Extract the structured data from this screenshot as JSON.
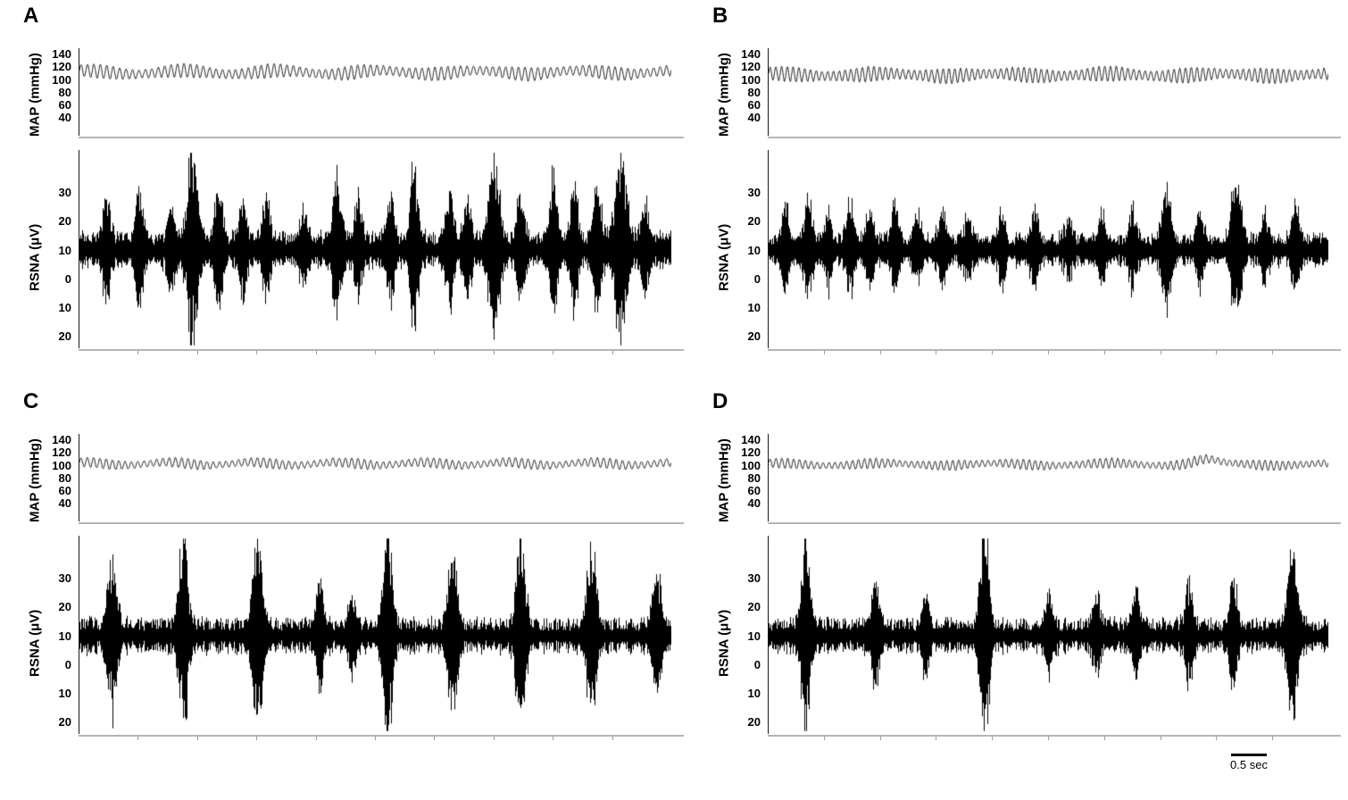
{
  "chart_data": {
    "type": "line",
    "title": "",
    "description": "Four-panel figure (A-D); each panel shows a raw mean arterial pressure (MAP, mmHg) trace above a raw renal sympathetic nerve activity (RSNA, microvolts) trace versus time.",
    "time_scale": {
      "label": "0.5 sec",
      "seconds": 0.5
    },
    "colors": {
      "rsna_trace": "#000000",
      "map_trace": "#222222",
      "axis_line": "#1a1a1a",
      "baseline_gray": "#b5b5b5"
    },
    "panels": [
      {
        "label": "A",
        "map": {
          "kind": "map",
          "ylabel": "MAP (mmHg)",
          "unit": "mmHg",
          "ticks": [
            140,
            120,
            100,
            80,
            60,
            40
          ],
          "tick_labels": [
            "140",
            "120",
            "100",
            "80",
            "60",
            "40"
          ],
          "ylim": [
            12,
            150
          ],
          "mean": 112,
          "pulse_amp": 11,
          "slow_amp": 3,
          "slow_cycles": 6,
          "beats": 92,
          "seed": 101
        },
        "rsna": {
          "kind": "rsna",
          "ylabel": "RSNA (μV)",
          "unit": "μV",
          "ticks": [
            30,
            20,
            10,
            0,
            -10,
            -20
          ],
          "tick_labels": [
            "30",
            "20",
            "10",
            "0",
            "10",
            "20"
          ],
          "ylim": [
            -24,
            45
          ],
          "baseline": 10,
          "noise_amp": 4.5,
          "seed": 201,
          "bursts": [
            [
              0.045,
              12
            ],
            [
              0.1,
              16
            ],
            [
              0.155,
              10
            ],
            [
              0.19,
              27,
              0.008
            ],
            [
              0.235,
              18
            ],
            [
              0.275,
              12
            ],
            [
              0.315,
              14
            ],
            [
              0.38,
              10
            ],
            [
              0.435,
              20
            ],
            [
              0.47,
              12
            ],
            [
              0.525,
              14
            ],
            [
              0.565,
              22
            ],
            [
              0.625,
              16
            ],
            [
              0.655,
              12
            ],
            [
              0.7,
              26,
              0.008
            ],
            [
              0.745,
              14
            ],
            [
              0.8,
              20
            ],
            [
              0.835,
              16
            ],
            [
              0.875,
              18
            ],
            [
              0.915,
              26,
              0.009
            ],
            [
              0.955,
              12
            ]
          ]
        }
      },
      {
        "label": "B",
        "map": {
          "kind": "map",
          "ylabel": "MAP (mmHg)",
          "unit": "mmHg",
          "ticks": [
            140,
            120,
            100,
            80,
            60,
            40
          ],
          "tick_labels": [
            "140",
            "120",
            "100",
            "80",
            "60",
            "40"
          ],
          "ylim": [
            12,
            150
          ],
          "mean": 108,
          "pulse_amp": 12,
          "slow_amp": 2,
          "slow_cycles": 5,
          "beats": 97,
          "seed": 102
        },
        "rsna": {
          "kind": "rsna",
          "ylabel": "RSNA (μV)",
          "unit": "μV",
          "ticks": [
            30,
            20,
            10,
            0,
            -10,
            -20
          ],
          "tick_labels": [
            "30",
            "20",
            "10",
            "0",
            "10",
            "20"
          ],
          "ylim": [
            -24,
            45
          ],
          "baseline": 10,
          "noise_amp": 4,
          "seed": 202,
          "bursts": [
            [
              0.03,
              10
            ],
            [
              0.07,
              13
            ],
            [
              0.105,
              9
            ],
            [
              0.145,
              12
            ],
            [
              0.18,
              10
            ],
            [
              0.225,
              13
            ],
            [
              0.265,
              9
            ],
            [
              0.31,
              11
            ],
            [
              0.355,
              8
            ],
            [
              0.415,
              9
            ],
            [
              0.475,
              10
            ],
            [
              0.535,
              8
            ],
            [
              0.595,
              9
            ],
            [
              0.65,
              10
            ],
            [
              0.71,
              17,
              0.008
            ],
            [
              0.77,
              10
            ],
            [
              0.835,
              22,
              0.008
            ],
            [
              0.885,
              9
            ],
            [
              0.94,
              11
            ]
          ]
        }
      },
      {
        "label": "C",
        "map": {
          "kind": "map",
          "ylabel": "MAP (mmHg)",
          "unit": "mmHg",
          "ticks": [
            140,
            120,
            100,
            80,
            60,
            40
          ],
          "tick_labels": [
            "140",
            "120",
            "100",
            "80",
            "60",
            "40"
          ],
          "ylim": [
            12,
            150
          ],
          "mean": 103,
          "pulse_amp": 8,
          "slow_amp": 2.5,
          "slow_cycles": 7,
          "beats": 94,
          "seed": 103
        },
        "rsna": {
          "kind": "rsna",
          "ylabel": "RSNA (μV)",
          "unit": "μV",
          "ticks": [
            30,
            20,
            10,
            0,
            -10,
            -20
          ],
          "tick_labels": [
            "30",
            "20",
            "10",
            "0",
            "10",
            "20"
          ],
          "ylim": [
            -24,
            45
          ],
          "baseline": 10,
          "noise_amp": 4.2,
          "seed": 203,
          "bursts": [
            [
              0.055,
              24,
              0.007
            ],
            [
              0.175,
              28,
              0.007
            ],
            [
              0.3,
              30,
              0.007
            ],
            [
              0.405,
              14
            ],
            [
              0.46,
              10
            ],
            [
              0.52,
              30,
              0.007
            ],
            [
              0.63,
              22,
              0.007
            ],
            [
              0.745,
              28,
              0.007
            ],
            [
              0.865,
              26,
              0.007
            ],
            [
              0.975,
              18,
              0.007
            ]
          ]
        }
      },
      {
        "label": "D",
        "map": {
          "kind": "map",
          "ylabel": "MAP (mmHg)",
          "unit": "mmHg",
          "ticks": [
            140,
            120,
            100,
            80,
            60,
            40
          ],
          "tick_labels": [
            "140",
            "120",
            "100",
            "80",
            "60",
            "40"
          ],
          "ylim": [
            12,
            150
          ],
          "mean": 102,
          "pulse_amp": 8,
          "slow_amp": 2,
          "slow_cycles": 5,
          "beats": 95,
          "seed": 104,
          "bump": {
            "pos": 0.78,
            "amp": 7,
            "width": 0.02
          }
        },
        "rsna": {
          "kind": "rsna",
          "ylabel": "RSNA (μV)",
          "unit": "μV",
          "ticks": [
            30,
            20,
            10,
            0,
            -10,
            -20
          ],
          "tick_labels": [
            "30",
            "20",
            "10",
            "0",
            "10",
            "20"
          ],
          "ylim": [
            -24,
            45
          ],
          "baseline": 10,
          "noise_amp": 4.2,
          "seed": 204,
          "bursts": [
            [
              0.065,
              28,
              0.007
            ],
            [
              0.19,
              14
            ],
            [
              0.28,
              10
            ],
            [
              0.385,
              30,
              0.007
            ],
            [
              0.5,
              9
            ],
            [
              0.585,
              12
            ],
            [
              0.655,
              11
            ],
            [
              0.75,
              14
            ],
            [
              0.83,
              16
            ],
            [
              0.935,
              24,
              0.008
            ]
          ]
        }
      }
    ]
  }
}
